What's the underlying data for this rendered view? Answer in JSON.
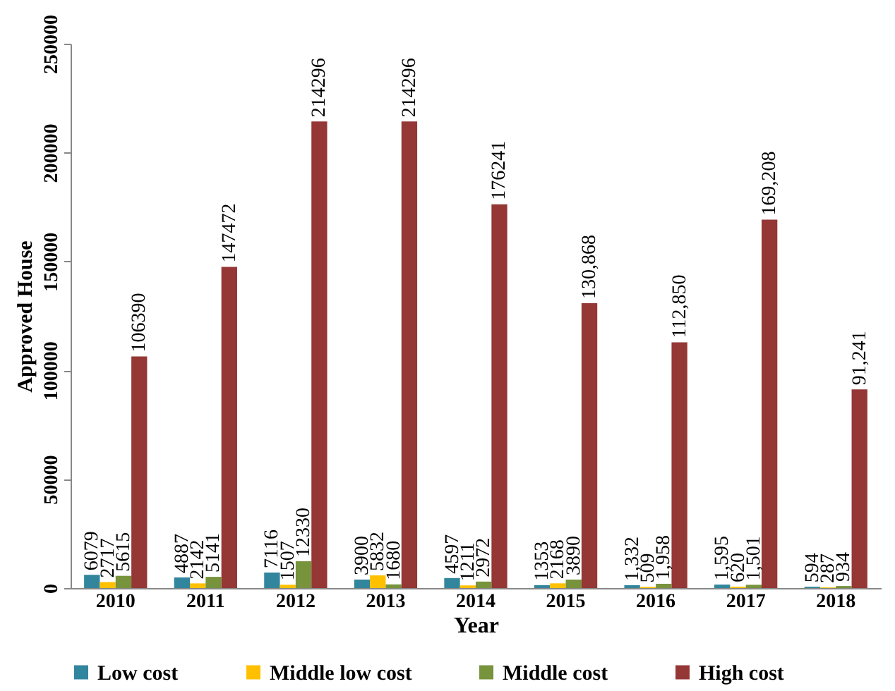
{
  "chart_data": {
    "type": "bar",
    "xlabel": "Year",
    "ylabel": "Approved House",
    "categories": [
      "2010",
      "2011",
      "2012",
      "2013",
      "2014",
      "2015",
      "2016",
      "2017",
      "2018"
    ],
    "series": [
      {
        "name": "Low cost",
        "color": "#31859c",
        "values": [
          6079,
          4887,
          7116,
          3900,
          4597,
          1353,
          1332,
          1595,
          594
        ],
        "value_labels": [
          "6079",
          "4887",
          "7116",
          "3900",
          "4597",
          "1353",
          "1,332",
          "1,595",
          "594"
        ]
      },
      {
        "name": "Middle low cost",
        "color": "#ffc000",
        "values": [
          2717,
          2142,
          1507,
          5832,
          1211,
          2168,
          509,
          620,
          287
        ],
        "value_labels": [
          "2717",
          "2142",
          "1507",
          "5832",
          "1211",
          "2168",
          "509",
          "620",
          "287"
        ]
      },
      {
        "name": "Middle cost",
        "color": "#77933c",
        "values": [
          5615,
          5141,
          12330,
          1680,
          2972,
          3890,
          1958,
          1501,
          934
        ],
        "value_labels": [
          "5615",
          "5141",
          "12330",
          "1680",
          "2972",
          "3890",
          "1,958",
          "1,501",
          "934"
        ]
      },
      {
        "name": "High cost",
        "color": "#953735",
        "values": [
          106390,
          147472,
          214296,
          214296,
          176241,
          130868,
          112850,
          169208,
          91241
        ],
        "value_labels": [
          "106390",
          "147472",
          "214296",
          "214296",
          "176241",
          "130,868",
          "112,850",
          "169,208",
          "91,241"
        ]
      }
    ],
    "ylim": [
      0,
      250000
    ],
    "yticks": [
      0,
      50000,
      100000,
      150000,
      200000,
      250000
    ],
    "grid": false,
    "legend": "bottom"
  }
}
